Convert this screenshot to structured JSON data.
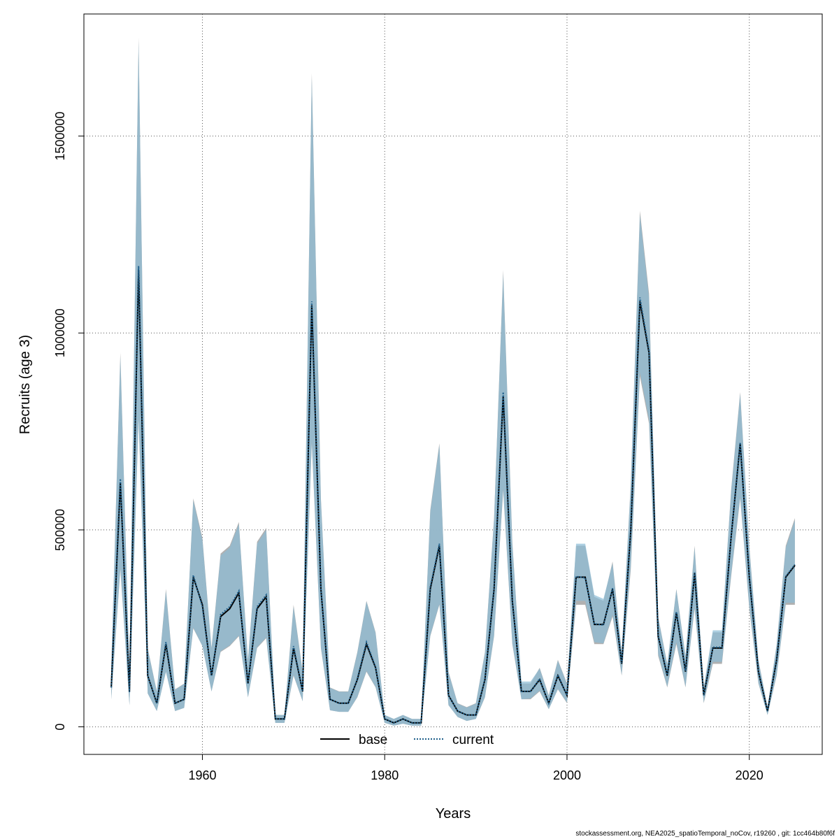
{
  "chart_data": {
    "type": "line",
    "xlabel": "Years",
    "ylabel": "Recruits (age 3)",
    "xlim": [
      1947,
      2028
    ],
    "ylim": [
      -70000,
      1810000
    ],
    "x_ticks": [
      1960,
      1980,
      2000,
      2020
    ],
    "x_tick_labels": [
      "1960",
      "1980",
      "2000",
      "2020"
    ],
    "y_ticks": [
      0,
      500000,
      1000000,
      1500000
    ],
    "y_tick_labels": [
      "0",
      "500000",
      "1000000",
      "1500000"
    ],
    "grid": true,
    "legend_position": "bottom",
    "legend": [
      {
        "label": "base",
        "style": "solid",
        "color": "#000000"
      },
      {
        "label": "current",
        "style": "dotted",
        "color": "#1f5f8b"
      }
    ],
    "colors": {
      "base_band": "#a9a9a9",
      "current_band": "#8bbcd6",
      "base_line": "#000000",
      "current_line": "#1f5f8b"
    },
    "x": [
      1950,
      1951,
      1952,
      1953,
      1954,
      1955,
      1956,
      1957,
      1958,
      1959,
      1960,
      1961,
      1962,
      1963,
      1964,
      1965,
      1966,
      1967,
      1968,
      1969,
      1970,
      1971,
      1972,
      1973,
      1974,
      1975,
      1976,
      1977,
      1978,
      1979,
      1980,
      1981,
      1982,
      1983,
      1984,
      1985,
      1986,
      1987,
      1988,
      1989,
      1990,
      1991,
      1992,
      1993,
      1994,
      1995,
      1996,
      1997,
      1998,
      1999,
      2000,
      2001,
      2002,
      2003,
      2004,
      2005,
      2006,
      2007,
      2008,
      2009,
      2010,
      2011,
      2012,
      2013,
      2014,
      2015,
      2016,
      2017,
      2018,
      2019,
      2020,
      2021,
      2022,
      2023,
      2024,
      2025
    ],
    "series": [
      {
        "name": "base",
        "values": [
          100000,
          620000,
          90000,
          1160000,
          130000,
          60000,
          210000,
          60000,
          70000,
          380000,
          310000,
          130000,
          280000,
          300000,
          340000,
          110000,
          300000,
          330000,
          20000,
          20000,
          200000,
          90000,
          1070000,
          350000,
          70000,
          60000,
          60000,
          120000,
          210000,
          150000,
          20000,
          10000,
          20000,
          10000,
          10000,
          350000,
          460000,
          80000,
          40000,
          30000,
          30000,
          120000,
          350000,
          840000,
          320000,
          90000,
          90000,
          120000,
          60000,
          130000,
          80000,
          380000,
          380000,
          260000,
          260000,
          350000,
          160000,
          500000,
          1080000,
          950000,
          230000,
          130000,
          290000,
          140000,
          390000,
          80000,
          200000,
          200000,
          480000,
          720000,
          380000,
          140000,
          40000,
          170000,
          380000,
          410000
        ],
        "lower": [
          70000,
          400000,
          55000,
          780000,
          85000,
          40000,
          140000,
          40000,
          48000,
          250000,
          205000,
          90000,
          190000,
          205000,
          230000,
          75000,
          200000,
          225000,
          10000,
          10000,
          130000,
          65000,
          720000,
          200000,
          42000,
          38000,
          38000,
          75000,
          140000,
          100000,
          10000,
          3000,
          8000,
          3000,
          3000,
          230000,
          310000,
          55000,
          25000,
          15000,
          20000,
          75000,
          230000,
          600000,
          210000,
          70000,
          70000,
          90000,
          45000,
          95000,
          60000,
          310000,
          310000,
          210000,
          210000,
          280000,
          130000,
          400000,
          890000,
          770000,
          180000,
          100000,
          210000,
          100000,
          300000,
          60000,
          160000,
          160000,
          380000,
          580000,
          300000,
          110000,
          30000,
          130000,
          310000,
          310000
        ],
        "upper": [
          150000,
          950000,
          140000,
          1750000,
          200000,
          90000,
          350000,
          95000,
          110000,
          580000,
          480000,
          200000,
          440000,
          460000,
          520000,
          170000,
          470000,
          505000,
          30000,
          30000,
          310000,
          140000,
          1660000,
          580000,
          100000,
          90000,
          90000,
          190000,
          320000,
          240000,
          30000,
          20000,
          30000,
          20000,
          20000,
          550000,
          720000,
          140000,
          60000,
          50000,
          60000,
          190000,
          530000,
          1160000,
          470000,
          110000,
          110000,
          150000,
          80000,
          170000,
          110000,
          460000,
          460000,
          330000,
          320000,
          420000,
          190000,
          620000,
          1310000,
          1100000,
          280000,
          160000,
          350000,
          180000,
          460000,
          100000,
          240000,
          240000,
          600000,
          850000,
          460000,
          170000,
          50000,
          210000,
          460000,
          530000
        ]
      },
      {
        "name": "current",
        "values": [
          100000,
          630000,
          88000,
          1170000,
          130000,
          60000,
          215000,
          60000,
          70000,
          385000,
          305000,
          130000,
          285000,
          305000,
          345000,
          110000,
          305000,
          335000,
          20000,
          20000,
          205000,
          90000,
          1080000,
          352000,
          70000,
          60000,
          60000,
          122000,
          215000,
          152000,
          20000,
          10000,
          20000,
          10000,
          10000,
          355000,
          465000,
          80000,
          40000,
          30000,
          30000,
          122000,
          352000,
          850000,
          322000,
          90000,
          90000,
          122000,
          60000,
          132000,
          80000,
          382000,
          378000,
          262000,
          258000,
          352000,
          162000,
          505000,
          1090000,
          955000,
          232000,
          132000,
          292000,
          142000,
          392000,
          80000,
          202000,
          202000,
          482000,
          722000,
          382000,
          142000,
          40000,
          172000,
          382000,
          412000
        ],
        "lower": [
          70000,
          405000,
          55000,
          785000,
          85000,
          40000,
          140000,
          40000,
          48000,
          252000,
          205000,
          90000,
          192000,
          207000,
          232000,
          75000,
          202000,
          227000,
          10000,
          10000,
          132000,
          65000,
          725000,
          202000,
          42000,
          38000,
          38000,
          76000,
          142000,
          101000,
          10000,
          3000,
          8000,
          3000,
          3000,
          232000,
          312000,
          55000,
          25000,
          15000,
          20000,
          76000,
          232000,
          605000,
          212000,
          70000,
          72000,
          92000,
          45000,
          96000,
          62000,
          320000,
          320000,
          215000,
          212000,
          285000,
          132000,
          410000,
          900000,
          780000,
          185000,
          102000,
          215000,
          102000,
          305000,
          62000,
          165000,
          165000,
          385000,
          585000,
          305000,
          112000,
          30000,
          132000,
          315000,
          315000
        ],
        "upper": [
          148000,
          940000,
          138000,
          1740000,
          198000,
          89000,
          345000,
          94000,
          109000,
          575000,
          475000,
          198000,
          435000,
          455000,
          515000,
          168000,
          465000,
          500000,
          30000,
          30000,
          305000,
          138000,
          1650000,
          575000,
          99000,
          89000,
          89000,
          188000,
          318000,
          238000,
          30000,
          20000,
          30000,
          20000,
          20000,
          545000,
          715000,
          138000,
          59000,
          49000,
          59000,
          188000,
          528000,
          1150000,
          465000,
          115000,
          115000,
          148000,
          79000,
          168000,
          108000,
          465000,
          465000,
          335000,
          325000,
          415000,
          188000,
          615000,
          1300000,
          1090000,
          278000,
          158000,
          348000,
          178000,
          455000,
          99000,
          245000,
          245000,
          595000,
          845000,
          455000,
          168000,
          49000,
          208000,
          455000,
          525000
        ]
      }
    ]
  },
  "footer": "stockassessment.org, NEA2025_spatioTemporal_noCov, r19260 , git: 1cc464b80f6f"
}
